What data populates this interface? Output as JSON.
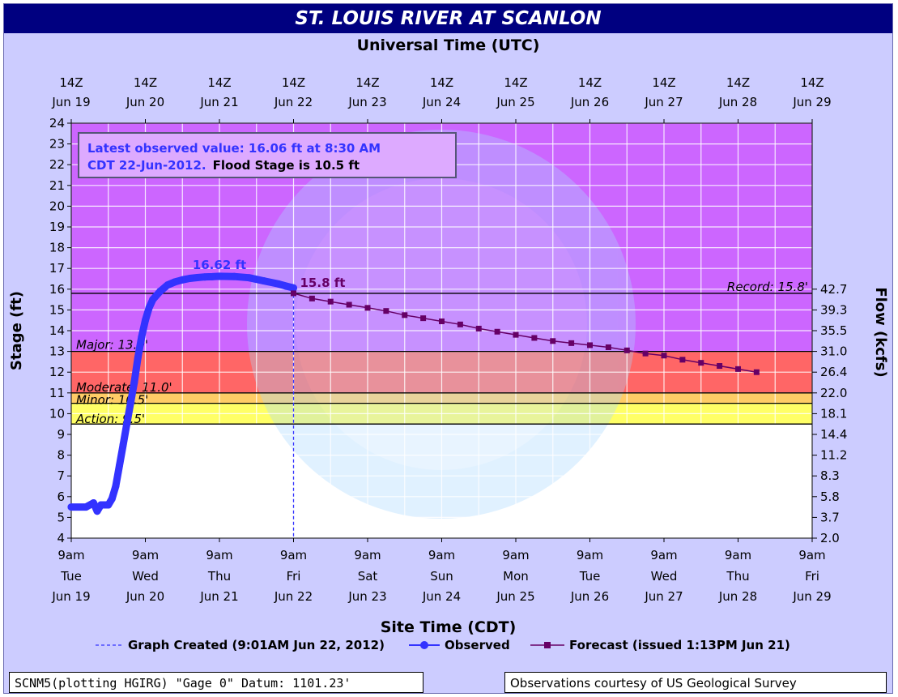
{
  "title": "ST. LOUIS RIVER AT SCANLON",
  "top_axis_label": "Universal Time (UTC)",
  "bottom_axis_label": "Site Time (CDT)",
  "info_box": {
    "line1": "Latest observed value: 16.06 ft at 8:30 AM",
    "line2_a": "CDT 22-Jun-2012.",
    "line2_b": "Flood Stage is 10.5 ft"
  },
  "legend": {
    "created": "Graph Created (9:01AM Jun 22, 2012)",
    "observed": "Observed",
    "forecast": "Forecast (issued 1:13PM Jun 21)"
  },
  "footer_left": "SCNM5(plotting HGIRG) \"Gage 0\" Datum: 1101.23'",
  "footer_right": "Observations courtesy of US Geological Survey",
  "chart_data": {
    "type": "line",
    "title": "ST. LOUIS RIVER AT SCANLON",
    "ylabel": "Stage (ft)",
    "y2label": "Flow (kcfs)",
    "ylim": [
      4,
      24
    ],
    "xlim_days": [
      0,
      10
    ],
    "grid": true,
    "x_top_ticks": [
      {
        "t": "14Z",
        "b": "Jun 19"
      },
      {
        "t": "14Z",
        "b": "Jun 20"
      },
      {
        "t": "14Z",
        "b": "Jun 21"
      },
      {
        "t": "14Z",
        "b": "Jun 22"
      },
      {
        "t": "14Z",
        "b": "Jun 23"
      },
      {
        "t": "14Z",
        "b": "Jun 24"
      },
      {
        "t": "14Z",
        "b": "Jun 25"
      },
      {
        "t": "14Z",
        "b": "Jun 26"
      },
      {
        "t": "14Z",
        "b": "Jun 27"
      },
      {
        "t": "14Z",
        "b": "Jun 28"
      },
      {
        "t": "14Z",
        "b": "Jun 29"
      }
    ],
    "x_bottom_ticks": [
      {
        "t": "9am",
        "d": "Tue",
        "b": "Jun 19"
      },
      {
        "t": "9am",
        "d": "Wed",
        "b": "Jun 20"
      },
      {
        "t": "9am",
        "d": "Thu",
        "b": "Jun 21"
      },
      {
        "t": "9am",
        "d": "Fri",
        "b": "Jun 22"
      },
      {
        "t": "9am",
        "d": "Sat",
        "b": "Jun 23"
      },
      {
        "t": "9am",
        "d": "Sun",
        "b": "Jun 24"
      },
      {
        "t": "9am",
        "d": "Mon",
        "b": "Jun 25"
      },
      {
        "t": "9am",
        "d": "Tue",
        "b": "Jun 26"
      },
      {
        "t": "9am",
        "d": "Wed",
        "b": "Jun 27"
      },
      {
        "t": "9am",
        "d": "Thu",
        "b": "Jun 28"
      },
      {
        "t": "9am",
        "d": "Fri",
        "b": "Jun 29"
      }
    ],
    "y_ticks": [
      "4",
      "5",
      "6",
      "7",
      "8",
      "9",
      "10",
      "11",
      "12",
      "13",
      "14",
      "15",
      "16",
      "17",
      "18",
      "19",
      "20",
      "21",
      "22",
      "23",
      "24"
    ],
    "flow_ticks": [
      {
        "stage": 4,
        "label": "2.0"
      },
      {
        "stage": 5,
        "label": "3.7"
      },
      {
        "stage": 6,
        "label": "5.8"
      },
      {
        "stage": 7,
        "label": "8.3"
      },
      {
        "stage": 8,
        "label": "11.2"
      },
      {
        "stage": 9,
        "label": "14.4"
      },
      {
        "stage": 10,
        "label": "18.1"
      },
      {
        "stage": 11,
        "label": "22.0"
      },
      {
        "stage": 12,
        "label": "26.4"
      },
      {
        "stage": 13,
        "label": "31.0"
      },
      {
        "stage": 14,
        "label": "35.5"
      },
      {
        "stage": 15,
        "label": "39.3"
      },
      {
        "stage": 16,
        "label": "42.7"
      }
    ],
    "bands": [
      {
        "name": "action",
        "from": 9.5,
        "to": 10.5,
        "color": "#ffff66"
      },
      {
        "name": "minor",
        "from": 10.5,
        "to": 11.0,
        "color": "#ffcc66"
      },
      {
        "name": "moderate",
        "from": 11.0,
        "to": 13.0,
        "color": "#ff6666"
      },
      {
        "name": "major",
        "from": 13.0,
        "to": 24.0,
        "color": "#cc66ff"
      }
    ],
    "thresholds": [
      {
        "label": "Action: 9.5'",
        "value": 9.5
      },
      {
        "label": "Minor: 10.5'",
        "value": 10.5
      },
      {
        "label": "Moderate: 11.0'",
        "value": 11.0
      },
      {
        "label": "Major: 13.0'",
        "value": 13.0
      },
      {
        "label": "Record: 15.8'",
        "value": 15.8
      }
    ],
    "observed": {
      "name": "Observed",
      "color": "#3333ff",
      "x_days": [
        0.0,
        0.2,
        0.3,
        0.35,
        0.4,
        0.5,
        0.55,
        0.6,
        0.65,
        0.7,
        0.75,
        0.8,
        0.85,
        0.9,
        0.95,
        1.0,
        1.05,
        1.1,
        1.2,
        1.3,
        1.4,
        1.5,
        1.6,
        1.7,
        1.8,
        1.9,
        2.0,
        2.2,
        2.4,
        2.6,
        2.8,
        2.9,
        3.0
      ],
      "stage": [
        5.5,
        5.5,
        5.7,
        5.3,
        5.6,
        5.6,
        5.9,
        6.5,
        7.5,
        8.5,
        9.5,
        10.5,
        11.5,
        12.7,
        13.7,
        14.5,
        15.1,
        15.5,
        15.9,
        16.2,
        16.35,
        16.45,
        16.52,
        16.56,
        16.59,
        16.6,
        16.62,
        16.61,
        16.55,
        16.4,
        16.25,
        16.15,
        16.06
      ]
    },
    "observed_peak_label": "16.62 ft",
    "forecast": {
      "name": "Forecast (issued 1:13PM Jun 21)",
      "color": "#660066",
      "x_days": [
        3.0,
        3.25,
        3.5,
        3.75,
        4.0,
        4.25,
        4.5,
        4.75,
        5.0,
        5.25,
        5.5,
        5.75,
        6.0,
        6.25,
        6.5,
        6.75,
        7.0,
        7.25,
        7.5,
        7.75,
        8.0,
        8.25,
        8.5,
        8.75,
        9.0,
        9.25
      ],
      "stage": [
        15.8,
        15.55,
        15.4,
        15.25,
        15.1,
        14.95,
        14.75,
        14.6,
        14.45,
        14.3,
        14.1,
        13.95,
        13.8,
        13.65,
        13.5,
        13.4,
        13.3,
        13.2,
        13.05,
        12.9,
        12.8,
        12.6,
        12.45,
        12.3,
        12.15,
        12.0
      ]
    },
    "forecast_start_label": "15.8 ft",
    "created_x_days": 3.0
  }
}
